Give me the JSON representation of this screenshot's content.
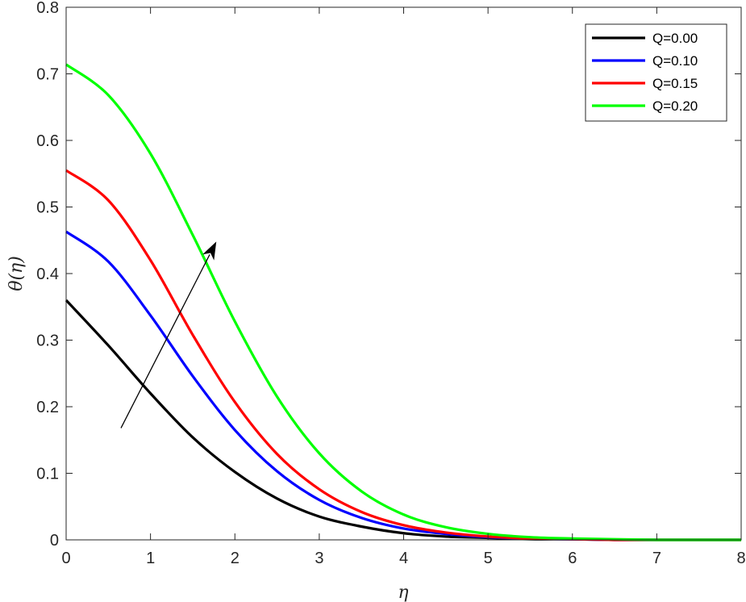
{
  "chart_data": {
    "type": "line",
    "xlabel": "η",
    "ylabel": "θ(η)",
    "xlim": [
      0,
      8
    ],
    "ylim": [
      0,
      0.8
    ],
    "x_ticks": [
      "0",
      "1",
      "2",
      "3",
      "4",
      "5",
      "6",
      "7",
      "8"
    ],
    "y_ticks": [
      "0",
      "0.1",
      "0.2",
      "0.3",
      "0.4",
      "0.5",
      "0.6",
      "0.7",
      "0.8"
    ],
    "legend_position": "top-right",
    "grid": false,
    "x": [
      0,
      0.5,
      1,
      1.5,
      2,
      2.5,
      3,
      3.5,
      4,
      4.5,
      5,
      5.5,
      6,
      6.5,
      7,
      7.5,
      8
    ],
    "series": [
      {
        "name": "Q=0.00",
        "color": "#000000",
        "values": [
          0.36,
          0.292,
          0.22,
          0.154,
          0.102,
          0.062,
          0.035,
          0.02,
          0.01,
          0.005,
          0.003,
          0.001,
          0.001,
          0.0,
          0.0,
          0.0,
          0.0
        ]
      },
      {
        "name": "Q=0.10",
        "color": "#0000ff",
        "values": [
          0.463,
          0.418,
          0.337,
          0.246,
          0.165,
          0.103,
          0.06,
          0.033,
          0.017,
          0.009,
          0.004,
          0.002,
          0.001,
          0.0,
          0.0,
          0.0,
          0.0
        ]
      },
      {
        "name": "Q=0.15",
        "color": "#ff0000",
        "values": [
          0.555,
          0.51,
          0.42,
          0.308,
          0.207,
          0.129,
          0.076,
          0.042,
          0.022,
          0.011,
          0.005,
          0.002,
          0.001,
          0.0,
          0.0,
          0.0,
          0.0
        ]
      },
      {
        "name": "Q=0.20",
        "color": "#00ff00",
        "values": [
          0.714,
          0.668,
          0.58,
          0.458,
          0.328,
          0.215,
          0.13,
          0.073,
          0.038,
          0.019,
          0.009,
          0.004,
          0.002,
          0.001,
          0.0,
          0.0,
          0.0
        ]
      }
    ],
    "annotations": [
      {
        "type": "arrow",
        "from": [
          0.65,
          0.168
        ],
        "to": [
          1.78,
          0.448
        ],
        "color": "#000000"
      }
    ]
  }
}
